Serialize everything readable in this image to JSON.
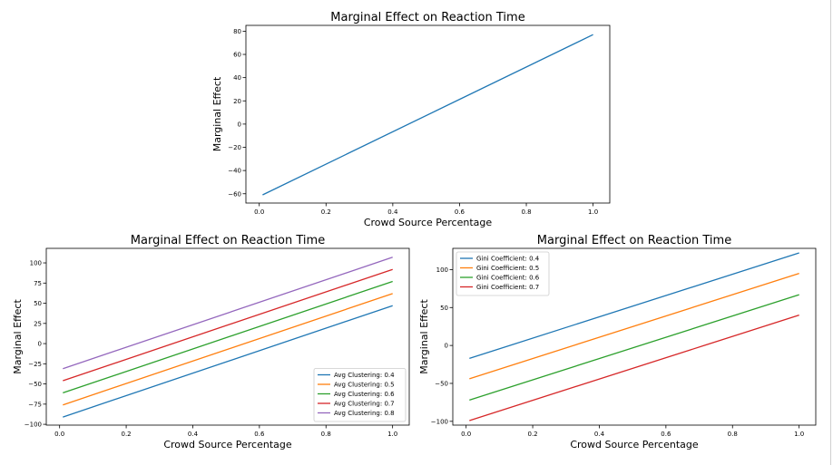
{
  "chart_data": [
    {
      "type": "line",
      "title": "Marginal Effect on Reaction Time",
      "xlabel": "Crowd Source Percentage",
      "ylabel": "Marginal Effect",
      "xlim": [
        -0.04,
        1.05
      ],
      "ylim": [
        -68,
        85
      ],
      "xticks": [
        0.0,
        0.2,
        0.4,
        0.6,
        0.8,
        1.0
      ],
      "yticks": [
        -60,
        -40,
        -20,
        0,
        20,
        40,
        60,
        80
      ],
      "legend": null,
      "series": [
        {
          "x": [
            0.01,
            1.0
          ],
          "y": [
            -61,
            77
          ],
          "color": "#1f77b4"
        }
      ]
    },
    {
      "type": "line",
      "title": "Marginal Effect on Reaction Time",
      "xlabel": "Crowd Source Percentage",
      "ylabel": "Marginal Effect",
      "xlim": [
        -0.04,
        1.05
      ],
      "ylim": [
        -101,
        118
      ],
      "xticks": [
        0.0,
        0.2,
        0.4,
        0.6,
        0.8,
        1.0
      ],
      "yticks": [
        -100,
        -75,
        -50,
        -25,
        0,
        25,
        50,
        75,
        100
      ],
      "legend": "lower-right",
      "series": [
        {
          "name": "Avg Clustering: 0.4",
          "x": [
            0.01,
            1.0
          ],
          "y": [
            -91,
            47
          ],
          "color": "#1f77b4"
        },
        {
          "name": "Avg Clustering: 0.5",
          "x": [
            0.01,
            1.0
          ],
          "y": [
            -76,
            62
          ],
          "color": "#ff7f0e"
        },
        {
          "name": "Avg Clustering: 0.6",
          "x": [
            0.01,
            1.0
          ],
          "y": [
            -61,
            77
          ],
          "color": "#2ca02c"
        },
        {
          "name": "Avg Clustering: 0.7",
          "x": [
            0.01,
            1.0
          ],
          "y": [
            -46,
            92
          ],
          "color": "#d62728"
        },
        {
          "name": "Avg Clustering: 0.8",
          "x": [
            0.01,
            1.0
          ],
          "y": [
            -31,
            107
          ],
          "color": "#9467bd"
        }
      ]
    },
    {
      "type": "line",
      "title": "Marginal Effect on Reaction Time",
      "xlabel": "Crowd Source Percentage",
      "ylabel": "Marginal Effect",
      "xlim": [
        -0.04,
        1.05
      ],
      "ylim": [
        -105,
        128
      ],
      "xticks": [
        0.0,
        0.2,
        0.4,
        0.6,
        0.8,
        1.0
      ],
      "yticks": [
        -100,
        -50,
        0,
        50,
        100
      ],
      "legend": "top-left",
      "series": [
        {
          "name": "Gini Coefficient: 0.4",
          "x": [
            0.01,
            1.0
          ],
          "y": [
            -17,
            122
          ],
          "color": "#1f77b4"
        },
        {
          "name": "Gini Coefficient: 0.5",
          "x": [
            0.01,
            1.0
          ],
          "y": [
            -44,
            95
          ],
          "color": "#ff7f0e"
        },
        {
          "name": "Gini Coefficient: 0.6",
          "x": [
            0.01,
            1.0
          ],
          "y": [
            -72,
            67
          ],
          "color": "#2ca02c"
        },
        {
          "name": "Gini Coefficient: 0.7",
          "x": [
            0.01,
            1.0
          ],
          "y": [
            -99,
            40
          ],
          "color": "#d62728"
        }
      ]
    }
  ]
}
